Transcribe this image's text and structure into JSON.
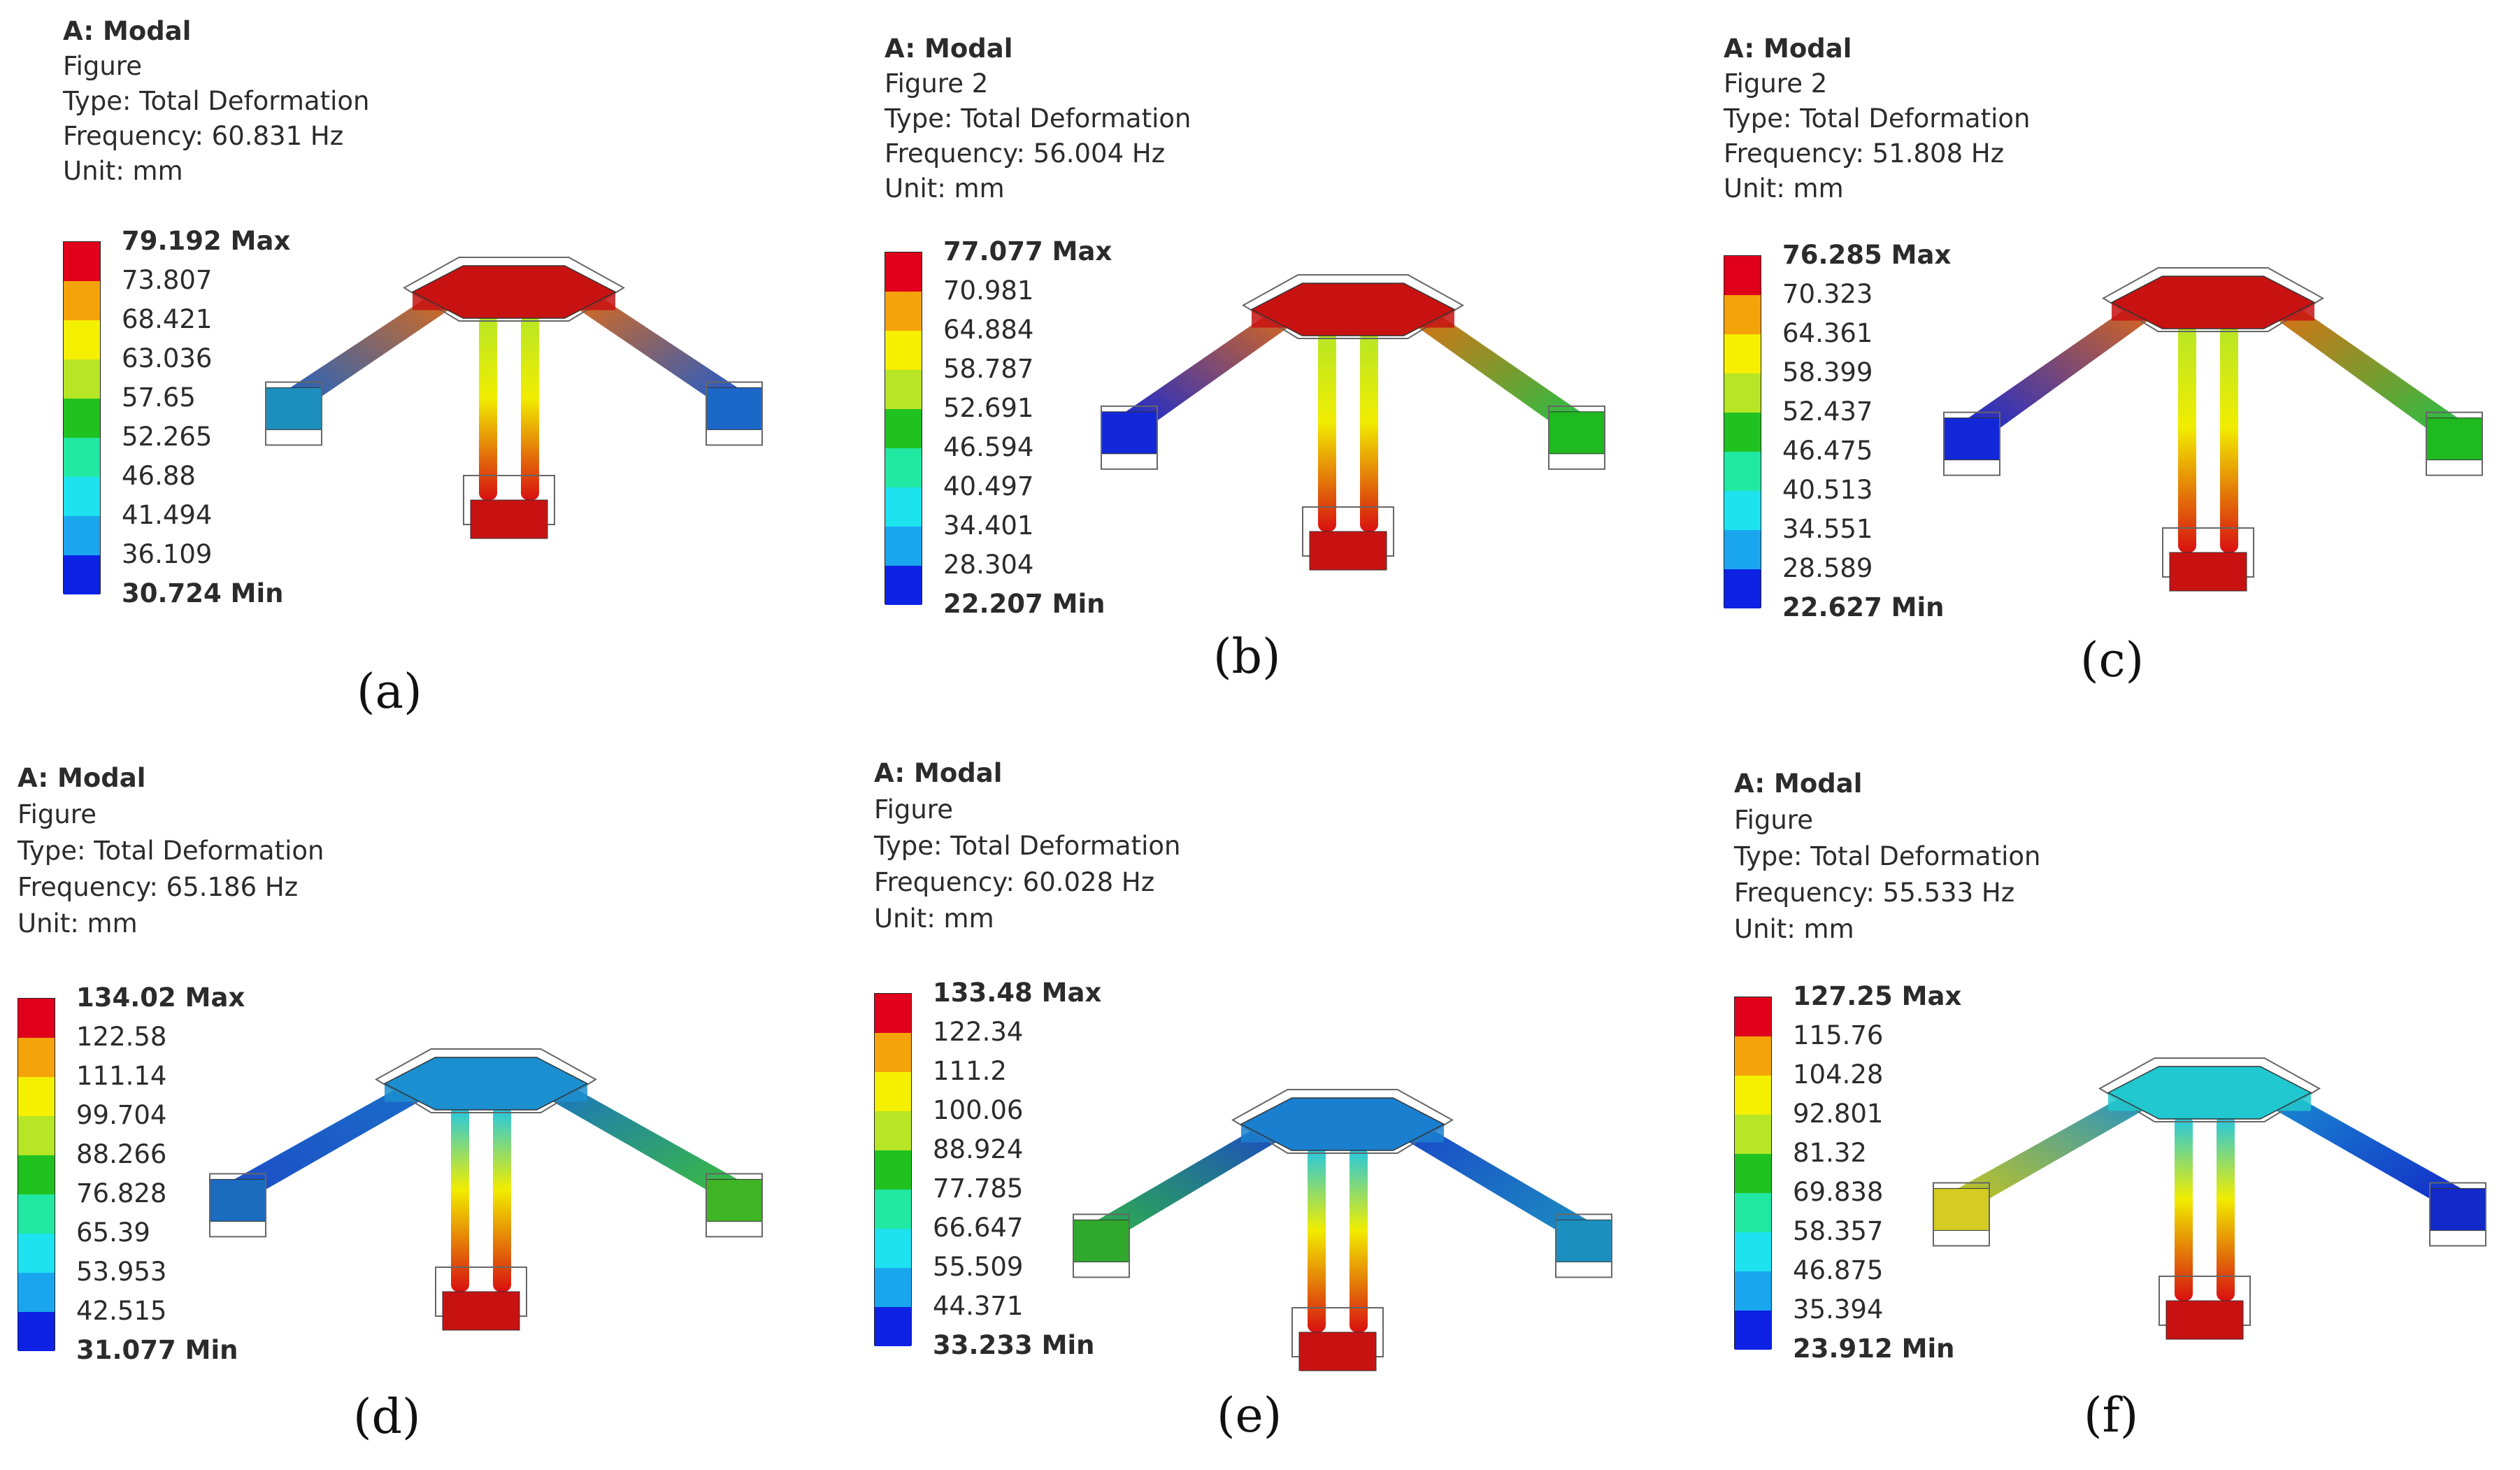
{
  "colors": {
    "legend_scale": [
      "#e0001b",
      "#f5a30a",
      "#f5ef00",
      "#b6e626",
      "#20c220",
      "#21e8a3",
      "#1de2f0",
      "#1aa6ee",
      "#0d22e4"
    ],
    "platform_outline": "#666666"
  },
  "panels": [
    {
      "title": "A: Modal",
      "figure": "Figure",
      "type": "Type: Total Deformation",
      "frequency": "Frequency: 60.831 Hz",
      "unit": "Unit: mm",
      "max_label": "79.192 Max",
      "ticks": [
        "73.807",
        "68.421",
        "63.036",
        "57.65",
        "52.265",
        "46.88",
        "41.494",
        "36.109"
      ],
      "min_label": "30.724 Min",
      "caption": "(a)",
      "model": {
        "platform": "#c81212",
        "arm_top": "#e56b10",
        "arm_end_left": "#1c63c6",
        "arm_end_right": "#1c5bd0",
        "foot_left": "#1c8fbf",
        "foot_right": "#1b68c9",
        "leg_top": "#b6e626",
        "leg_mid": "#f1ed00",
        "leg_bottom": "#d81010",
        "base": "#c81212"
      }
    },
    {
      "title": "A: Modal",
      "figure": "Figure 2",
      "type": "Type: Total Deformation",
      "frequency": "Frequency: 56.004 Hz",
      "unit": "Unit: mm",
      "max_label": "77.077 Max",
      "ticks": [
        "70.981",
        "64.884",
        "58.787",
        "52.691",
        "46.594",
        "40.497",
        "34.401",
        "28.304"
      ],
      "min_label": "22.207 Min",
      "caption": "(b)",
      "model": {
        "platform": "#c81212",
        "arm_top": "#e56b10",
        "arm_end_left": "#1228d8",
        "arm_end_right": "#21c248",
        "foot_left": "#1228d8",
        "foot_right": "#1fba1f",
        "leg_top": "#b6e626",
        "leg_mid": "#f1ed00",
        "leg_bottom": "#d81010",
        "base": "#c81212"
      }
    },
    {
      "title": "A: Modal",
      "figure": "Figure 2",
      "type": "Type: Total Deformation",
      "frequency": "Frequency: 51.808 Hz",
      "unit": "Unit: mm",
      "max_label": "76.285 Max",
      "ticks": [
        "70.323",
        "64.361",
        "58.399",
        "52.437",
        "46.475",
        "40.513",
        "34.551",
        "28.589"
      ],
      "min_label": "22.627 Min",
      "caption": "(c)",
      "model": {
        "platform": "#c81212",
        "arm_top": "#e56b10",
        "arm_end_left": "#1228d8",
        "arm_end_right": "#21c248",
        "foot_left": "#1228d8",
        "foot_right": "#1fba1f",
        "leg_top": "#b6e626",
        "leg_mid": "#f1ed00",
        "leg_bottom": "#d81010",
        "base": "#c81212"
      }
    },
    {
      "title": "A: Modal",
      "figure": "Figure",
      "type": "Type: Total Deformation",
      "frequency": "Frequency: 65.186 Hz",
      "unit": "Unit: mm",
      "max_label": "134.02 Max",
      "ticks": [
        "122.58",
        "111.14",
        "99.704",
        "88.266",
        "76.828",
        "65.39",
        "53.953",
        "42.515"
      ],
      "min_label": "31.077 Min",
      "caption": "(d)",
      "model": {
        "platform": "#1b8fd0",
        "arm_top": "#1a6fc8",
        "arm_end_left": "#1c4dc6",
        "arm_end_right": "#3bbf3a",
        "foot_left": "#1b6bbf",
        "foot_right": "#3fb424",
        "leg_top": "#1ec6e8",
        "leg_mid": "#f1ed00",
        "leg_bottom": "#d81010",
        "base": "#c81212"
      }
    },
    {
      "title": "A: Modal",
      "figure": "Figure",
      "type": "Type: Total Deformation",
      "frequency": "Frequency: 60.028 Hz",
      "unit": "Unit: mm",
      "max_label": "133.48 Max",
      "ticks": [
        "122.34",
        "111.2",
        "100.06",
        "88.924",
        "77.785",
        "66.647",
        "55.509",
        "44.371"
      ],
      "min_label": "33.233 Min",
      "caption": "(e)",
      "model": {
        "platform": "#1b7fd0",
        "arm_top": "#1a45c8",
        "arm_end_left": "#2eb24a",
        "arm_end_right": "#1b8fc0",
        "foot_left": "#2fa82b",
        "foot_right": "#1b8fc0",
        "leg_top": "#1ec6e8",
        "leg_mid": "#f1ed00",
        "leg_bottom": "#d81010",
        "base": "#c81212"
      }
    },
    {
      "title": "A: Modal",
      "figure": "Figure",
      "type": "Type: Total Deformation",
      "frequency": "Frequency: 55.533 Hz",
      "unit": "Unit: mm",
      "max_label": "127.25 Max",
      "ticks": [
        "115.76",
        "104.28",
        "92.801",
        "81.32",
        "69.838",
        "58.357",
        "46.875",
        "35.394"
      ],
      "min_label": "23.912 Min",
      "caption": "(f)",
      "model": {
        "platform": "#21c8d0",
        "arm_top": "#1a8fd0",
        "arm_end_left": "#c9c61a",
        "arm_end_right": "#1228c8",
        "foot_left": "#d4cc20",
        "foot_right": "#1228c8",
        "leg_top": "#1ec6e8",
        "leg_mid": "#f1ed00",
        "leg_bottom": "#d81010",
        "base": "#c81212"
      }
    }
  ]
}
